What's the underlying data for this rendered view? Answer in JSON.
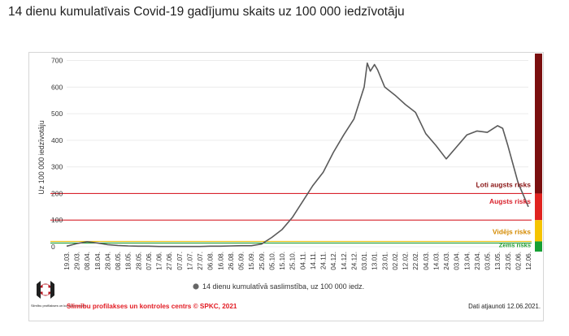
{
  "title": "14 dienu kumulatīvais Covid-19 gadījumu skaits uz 100 000 iedzīvotāju",
  "colors": {
    "line": "#5a5a5a",
    "very_high": "#d9232d",
    "high": "#d9232d",
    "medium": "#f0c419",
    "low": "#1f9b2f",
    "bar_very_high": "#7a0f0f",
    "bar_high": "#e0231f",
    "bar_medium": "#f5c400",
    "bar_low": "#16a034"
  },
  "logo_icon": "spkc-logo-icon",
  "chart_data": {
    "type": "line",
    "title": "14 dienu kumulatīvais Covid-19 gadījumu skaits uz 100 000 iedzīvotāju",
    "ylabel": "Uz 100 000 iedzīvotāju",
    "xlabel": "",
    "ylim": [
      0,
      720
    ],
    "yticks": [
      0,
      100,
      200,
      300,
      400,
      500,
      600,
      700
    ],
    "x_range": [
      "2020-03-19",
      "2021-06-12"
    ],
    "x_ticks": [
      "19.03.",
      "29.03.",
      "08.04.",
      "18.04.",
      "28.04.",
      "08.05.",
      "18.05.",
      "28.05.",
      "07.06.",
      "17.06.",
      "27.06.",
      "07.07.",
      "17.07.",
      "27.07.",
      "06.08.",
      "16.08.",
      "26.08.",
      "05.09.",
      "15.09.",
      "25.09.",
      "05.10.",
      "15.10.",
      "25.10.",
      "04.11.",
      "14.11.",
      "24.11.",
      "04.12.",
      "14.12.",
      "24.12.",
      "03.01.",
      "13.01.",
      "23.01.",
      "02.02.",
      "12.02.",
      "22.02.",
      "04.03.",
      "14.03.",
      "24.03.",
      "03.04.",
      "13.04.",
      "23.04.",
      "03.05.",
      "13.05.",
      "23.05.",
      "02.06.",
      "12.06."
    ],
    "series": [
      {
        "name": "14 dienu kumulatīvā saslimstība, uz 100 000 iedz.",
        "points": [
          [
            "2020-03-19",
            2
          ],
          [
            "2020-03-29",
            12
          ],
          [
            "2020-04-08",
            19
          ],
          [
            "2020-04-18",
            14
          ],
          [
            "2020-04-28",
            8
          ],
          [
            "2020-05-08",
            5
          ],
          [
            "2020-05-18",
            3
          ],
          [
            "2020-05-28",
            2
          ],
          [
            "2020-06-07",
            2
          ],
          [
            "2020-06-17",
            1
          ],
          [
            "2020-06-27",
            1
          ],
          [
            "2020-07-07",
            1
          ],
          [
            "2020-07-17",
            1
          ],
          [
            "2020-07-27",
            1
          ],
          [
            "2020-08-06",
            2
          ],
          [
            "2020-08-16",
            2
          ],
          [
            "2020-08-26",
            3
          ],
          [
            "2020-09-05",
            4
          ],
          [
            "2020-09-15",
            4
          ],
          [
            "2020-09-25",
            10
          ],
          [
            "2020-10-05",
            35
          ],
          [
            "2020-10-15",
            65
          ],
          [
            "2020-10-25",
            110
          ],
          [
            "2020-11-04",
            170
          ],
          [
            "2020-11-14",
            230
          ],
          [
            "2020-11-24",
            280
          ],
          [
            "2020-12-04",
            355
          ],
          [
            "2020-12-14",
            420
          ],
          [
            "2020-12-24",
            480
          ],
          [
            "2021-01-03",
            600
          ],
          [
            "2021-01-06",
            690
          ],
          [
            "2021-01-09",
            660
          ],
          [
            "2021-01-13",
            685
          ],
          [
            "2021-01-16",
            665
          ],
          [
            "2021-01-23",
            600
          ],
          [
            "2021-02-02",
            570
          ],
          [
            "2021-02-12",
            535
          ],
          [
            "2021-02-22",
            505
          ],
          [
            "2021-03-04",
            425
          ],
          [
            "2021-03-14",
            380
          ],
          [
            "2021-03-24",
            330
          ],
          [
            "2021-04-03",
            375
          ],
          [
            "2021-04-13",
            420
          ],
          [
            "2021-04-23",
            435
          ],
          [
            "2021-05-03",
            430
          ],
          [
            "2021-05-13",
            455
          ],
          [
            "2021-05-18",
            445
          ],
          [
            "2021-05-23",
            380
          ],
          [
            "2021-06-02",
            240
          ],
          [
            "2021-06-12",
            150
          ]
        ]
      }
    ],
    "thresholds": [
      {
        "value": 200,
        "label": "Ļoti augsts risks"
      },
      {
        "value": 100,
        "label": "Augsts risks"
      },
      {
        "value": 20,
        "label": "Vidējs risks"
      },
      {
        "value": 0,
        "label": "Zems risks"
      }
    ],
    "grid": true,
    "legend_position": "bottom"
  },
  "legend": {
    "label": "14 dienu kumulatīvā saslimstība, uz 100 000 iedz."
  },
  "footer": {
    "source": "Slimību profilakses un kontroles centrs © SPKC, 2021",
    "updated": "Dati atjaunoti 12.06.2021.",
    "logo_text": "Slimību profilakses un kontroles centrs"
  }
}
